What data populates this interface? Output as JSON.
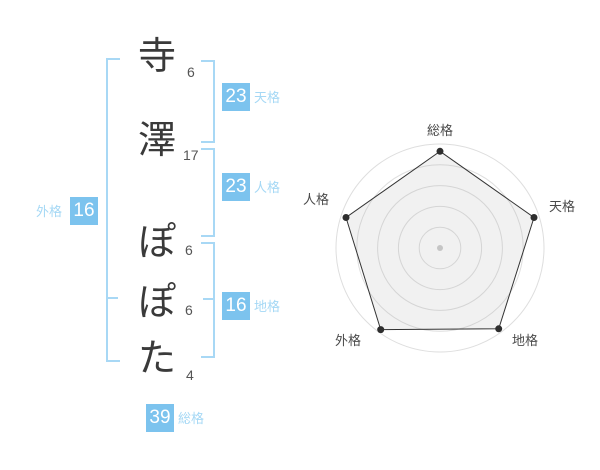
{
  "name_panel": {
    "characters": [
      {
        "char": "寺",
        "strokes": "6"
      },
      {
        "char": "澤",
        "strokes": "17"
      },
      {
        "char": "ぽ",
        "strokes": "6"
      },
      {
        "char": "ぽ",
        "strokes": "6"
      },
      {
        "char": "た",
        "strokes": "4"
      }
    ],
    "badges": {
      "tenkaku": {
        "value": "23",
        "label": "天格"
      },
      "jinkaku": {
        "value": "23",
        "label": "人格"
      },
      "chikaku": {
        "value": "16",
        "label": "地格"
      },
      "gaikaku": {
        "value": "16",
        "label": "外格"
      },
      "soukaku": {
        "value": "39",
        "label": "総格"
      }
    }
  },
  "colors": {
    "accent_blue": "#7cc3ee",
    "pale_blue_label": "#a5d8f5",
    "bracket_blue": "#a8d8f5",
    "text_dark": "#3a3a3a",
    "stroke_number_gray": "#555555",
    "grid_gray": "#dedede"
  },
  "chart_data": {
    "type": "radar",
    "categories": [
      "総格",
      "天格",
      "地格",
      "外格",
      "人格"
    ],
    "values": [
      93,
      95,
      96,
      97,
      95
    ],
    "max": 100,
    "grid": {
      "shape": "concentric-circles",
      "levels": 5
    },
    "start_angle_deg": -90,
    "direction": "clockwise",
    "legend": false,
    "styles": {
      "line": "#333333",
      "dot": "#2e2e2e",
      "fill": "rgba(170,170,170,0.16)",
      "grid_color": "#dedede",
      "label_color": "#4a4a4a",
      "center_dot": "#c5c5c5"
    }
  }
}
